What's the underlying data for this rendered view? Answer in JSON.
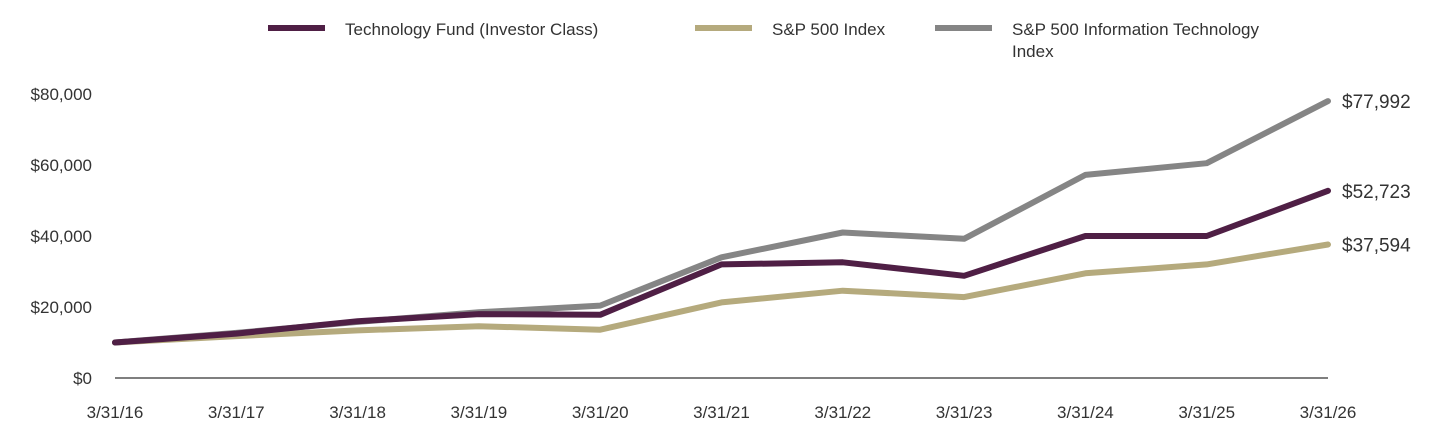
{
  "chart_data": {
    "type": "line",
    "x": [
      "3/31/16",
      "3/31/17",
      "3/31/18",
      "3/31/19",
      "3/31/20",
      "3/31/21",
      "3/31/22",
      "3/31/23",
      "3/31/24",
      "3/31/25",
      "3/31/26"
    ],
    "ylim": [
      0,
      80000
    ],
    "y_ticks": [
      "$0",
      "$20,000",
      "$40,000",
      "$60,000",
      "$80,000"
    ],
    "y_tick_values": [
      0,
      20000,
      40000,
      60000,
      80000
    ],
    "legend_position": "top",
    "grid": false,
    "series": [
      {
        "name": "Technology Fund (Investor Class)",
        "color": "#4f1f45",
        "values": [
          10000,
          12500,
          16000,
          18000,
          17800,
          32000,
          32600,
          28800,
          40000,
          40000,
          52723
        ],
        "end_label": "$52,723"
      },
      {
        "name": "S&P 500 Index",
        "color": "#b5aa7d",
        "values": [
          10000,
          11800,
          13400,
          14600,
          13600,
          21300,
          24600,
          22800,
          29500,
          32000,
          37594
        ],
        "end_label": "$37,594"
      },
      {
        "name": "S&P 500 Information Technology Index",
        "name_lines": [
          "S&P 500 Information Technology",
          "Index"
        ],
        "color": "#858585",
        "values": [
          10000,
          12700,
          15800,
          18500,
          20400,
          34000,
          41000,
          39200,
          57200,
          60500,
          77992
        ],
        "end_label": "$77,992"
      }
    ]
  }
}
